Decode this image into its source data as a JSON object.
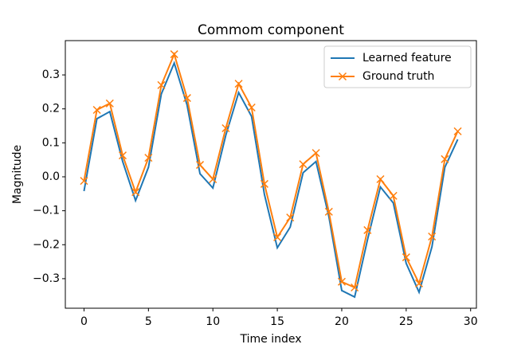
{
  "chart_data": {
    "type": "line",
    "title": "Commom component",
    "x_label": "Time index",
    "y_label": "Magnitude",
    "x": [
      0,
      1,
      2,
      3,
      4,
      5,
      6,
      7,
      8,
      9,
      10,
      11,
      12,
      13,
      14,
      15,
      16,
      17,
      18,
      19,
      20,
      21,
      22,
      23,
      24,
      25,
      26,
      27,
      28,
      29
    ],
    "series": [
      {
        "name": "Learned feature",
        "color": "#1f77b4",
        "marker": "none",
        "values": [
          -0.042,
          0.171,
          0.192,
          0.045,
          -0.07,
          0.028,
          0.244,
          0.335,
          0.211,
          0.009,
          -0.033,
          0.122,
          0.248,
          0.178,
          -0.052,
          -0.209,
          -0.148,
          0.012,
          0.045,
          -0.117,
          -0.335,
          -0.354,
          -0.185,
          -0.03,
          -0.077,
          -0.255,
          -0.34,
          -0.206,
          0.028,
          0.11
        ]
      },
      {
        "name": "Ground truth",
        "color": "#ff7f0e",
        "marker": "x",
        "values": [
          -0.012,
          0.197,
          0.216,
          0.063,
          -0.045,
          0.056,
          0.27,
          0.361,
          0.232,
          0.035,
          -0.007,
          0.143,
          0.274,
          0.204,
          -0.021,
          -0.178,
          -0.12,
          0.037,
          0.07,
          -0.103,
          -0.309,
          -0.326,
          -0.157,
          -0.007,
          -0.056,
          -0.237,
          -0.314,
          -0.176,
          0.052,
          0.134
        ]
      }
    ],
    "xlim": [
      -1.45,
      30.45
    ],
    "ylim": [
      -0.387,
      0.401
    ],
    "xticks": [
      0,
      5,
      10,
      15,
      20,
      25,
      30
    ],
    "yticks": [
      {
        "value": -0.3,
        "label": "−0.3"
      },
      {
        "value": -0.2,
        "label": "−0.2"
      },
      {
        "value": -0.1,
        "label": "−0.1"
      },
      {
        "value": 0,
        "label": "0.0"
      },
      0.1,
      0.2,
      0.3
    ],
    "legend": "upper right",
    "grid": false
  }
}
